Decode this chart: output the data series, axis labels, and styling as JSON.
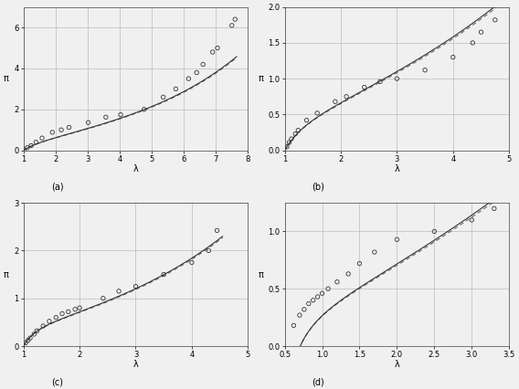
{
  "subplot_a": {
    "label": "(a)",
    "xlabel": "λ",
    "ylabel": "π",
    "xlim": [
      1,
      8
    ],
    "ylim": [
      0,
      7
    ],
    "xticks": [
      1,
      2,
      3,
      4,
      5,
      6,
      7,
      8
    ],
    "yticks": [
      0,
      2,
      4,
      6
    ],
    "exp_x": [
      1.02,
      1.12,
      1.24,
      1.39,
      1.58,
      1.9,
      2.18,
      2.42,
      3.02,
      3.57,
      4.03,
      4.76,
      5.36,
      5.75,
      6.15,
      6.4,
      6.6,
      6.9,
      7.05,
      7.5,
      7.6
    ],
    "exp_y": [
      0.03,
      0.13,
      0.23,
      0.4,
      0.6,
      0.88,
      1.0,
      1.12,
      1.36,
      1.62,
      1.74,
      2.0,
      2.6,
      3.0,
      3.5,
      3.8,
      4.2,
      4.8,
      5.0,
      6.1,
      6.4
    ]
  },
  "subplot_b": {
    "label": "(b)",
    "xlabel": "λ",
    "ylabel": "π",
    "xlim": [
      1,
      5
    ],
    "ylim": [
      0,
      2
    ],
    "xticks": [
      1,
      2,
      3,
      4,
      5
    ],
    "yticks": [
      0,
      0.5,
      1.0,
      1.5,
      2.0
    ],
    "exp_x": [
      1.04,
      1.08,
      1.12,
      1.19,
      1.24,
      1.39,
      1.58,
      1.9,
      2.1,
      2.42,
      2.7,
      3.0,
      3.5,
      4.0,
      4.35,
      4.5,
      4.75
    ],
    "exp_y": [
      0.05,
      0.11,
      0.16,
      0.23,
      0.28,
      0.42,
      0.52,
      0.68,
      0.75,
      0.88,
      0.96,
      1.0,
      1.12,
      1.3,
      1.5,
      1.65,
      1.82
    ]
  },
  "subplot_c": {
    "label": "(c)",
    "xlabel": "λ",
    "ylabel": "π",
    "xlim": [
      1,
      5
    ],
    "ylim": [
      0,
      3
    ],
    "xticks": [
      1,
      2,
      3,
      4,
      5
    ],
    "yticks": [
      0,
      1,
      2,
      3
    ],
    "exp_x": [
      1.04,
      1.08,
      1.12,
      1.19,
      1.24,
      1.35,
      1.46,
      1.58,
      1.69,
      1.8,
      1.92,
      2.0,
      2.42,
      2.7,
      3.0,
      3.5,
      4.0,
      4.3,
      4.45
    ],
    "exp_y": [
      0.07,
      0.12,
      0.17,
      0.25,
      0.32,
      0.42,
      0.52,
      0.6,
      0.68,
      0.72,
      0.77,
      0.8,
      1.0,
      1.15,
      1.25,
      1.5,
      1.75,
      2.0,
      2.42
    ]
  },
  "subplot_d": {
    "label": "(d)",
    "xlabel": "λ",
    "ylabel": "π",
    "xlim": [
      0.5,
      3.5
    ],
    "ylim": [
      0,
      1.25
    ],
    "xticks": [
      0.5,
      1.0,
      1.5,
      2.0,
      2.5,
      3.0,
      3.5
    ],
    "yticks": [
      0,
      0.5,
      1.0
    ],
    "exp_x": [
      0.62,
      0.7,
      0.76,
      0.82,
      0.88,
      0.94,
      1.0,
      1.08,
      1.2,
      1.35,
      1.5,
      1.7,
      2.0,
      2.5,
      3.0,
      3.3
    ],
    "exp_y": [
      0.18,
      0.27,
      0.32,
      0.37,
      0.4,
      0.43,
      0.46,
      0.5,
      0.56,
      0.63,
      0.72,
      0.82,
      0.93,
      1.0,
      1.1,
      1.2
    ]
  },
  "line_color_solid": "#333333",
  "line_color_dashed": "#666666",
  "marker_color": "#333333",
  "grid_color": "#bbbbbb",
  "bg_color": "#f0f0f0"
}
